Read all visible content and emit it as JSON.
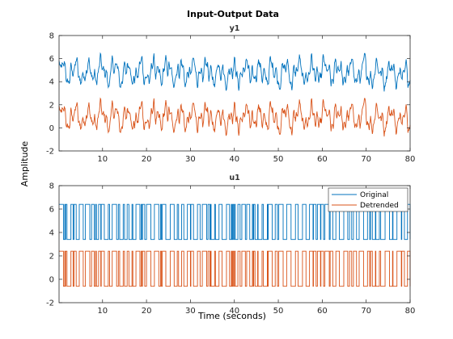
{
  "chart_data": {
    "type": "line",
    "title": "Input-Output Data",
    "ylabel": "Amplitude",
    "xlabel": "Time (seconds)",
    "xlim": [
      0.1,
      80
    ],
    "x_ticks": [
      10,
      20,
      30,
      40,
      50,
      60,
      70,
      80
    ],
    "legend": {
      "placement": "top-right",
      "entries": [
        "Original",
        "Detrended"
      ]
    },
    "colors": {
      "original": "#0072BD",
      "detrended": "#D95319"
    },
    "subplots": [
      {
        "name": "y1",
        "title": "y1",
        "ylim": [
          -2,
          8
        ],
        "y_ticks": [
          -2,
          0,
          2,
          4,
          6,
          8
        ],
        "series": [
          {
            "name": "Original",
            "mean": 4.8,
            "amplitude_range": [
              3.2,
              6.5
            ]
          },
          {
            "name": "Detrended",
            "mean": 0.9,
            "amplitude_range": [
              -0.7,
              2.3
            ]
          }
        ]
      },
      {
        "name": "u1",
        "title": "u1",
        "ylim": [
          -2,
          8
        ],
        "y_ticks": [
          -2,
          0,
          2,
          4,
          6,
          8
        ],
        "series": [
          {
            "name": "Original",
            "levels": [
              3.4,
              6.4
            ]
          },
          {
            "name": "Detrended",
            "levels": [
              -0.6,
              2.4
            ]
          }
        ]
      }
    ]
  }
}
